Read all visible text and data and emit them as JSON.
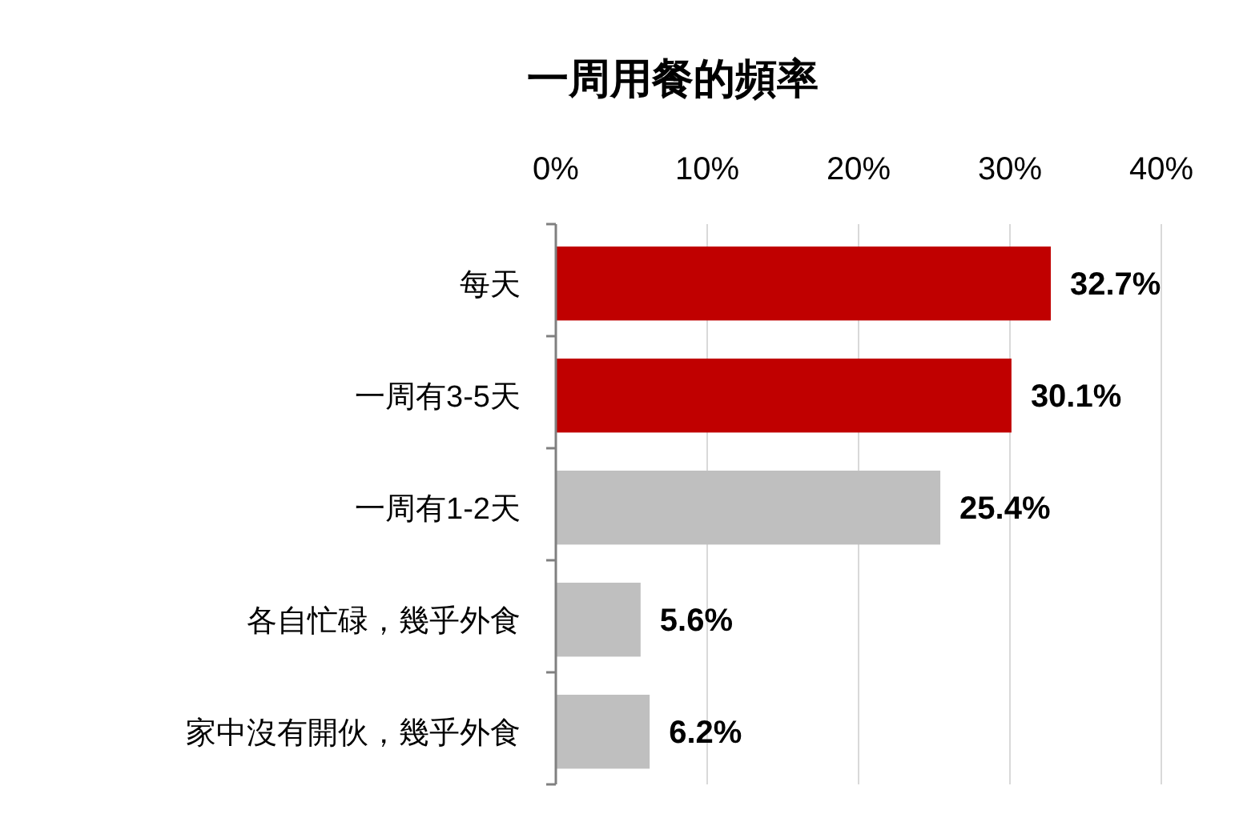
{
  "chart_data": {
    "type": "bar",
    "orientation": "horizontal",
    "title": "一周用餐的頻率",
    "categories": [
      "每天",
      "一周有3-5天",
      "一周有1-2天",
      "各自忙碌，幾乎外食",
      "家中沒有開伙，幾乎外食"
    ],
    "values": [
      32.7,
      30.1,
      25.4,
      5.6,
      6.2
    ],
    "colors": [
      "#c00000",
      "#c00000",
      "#bfbfbf",
      "#bfbfbf",
      "#bfbfbf"
    ],
    "value_labels": [
      "32.7%",
      "30.1%",
      "25.4%",
      "5.6%",
      "6.2%"
    ],
    "xlim": [
      0,
      40
    ],
    "xticks": [
      {
        "value": 0,
        "label": "0%"
      },
      {
        "value": 10,
        "label": "10%"
      },
      {
        "value": 20,
        "label": "20%"
      },
      {
        "value": 30,
        "label": "30%"
      },
      {
        "value": 40,
        "label": "40%"
      }
    ],
    "grid": "x"
  }
}
